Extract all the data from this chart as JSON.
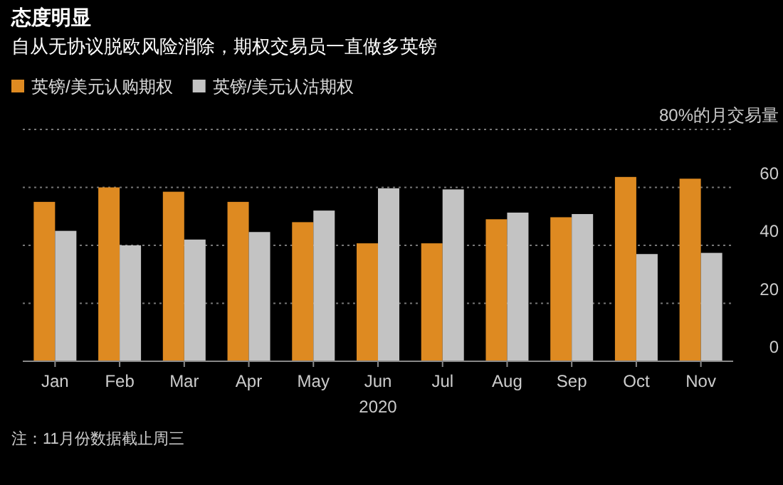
{
  "chart_data": {
    "type": "bar",
    "title": "态度明显",
    "subtitle": "自从无协议脱欧风险消除，期权交易员一直做多英镑",
    "xlabel": "2020",
    "categories": [
      "Jan",
      "Feb",
      "Mar",
      "Apr",
      "May",
      "Jun",
      "Jul",
      "Aug",
      "Sep",
      "Oct",
      "Nov"
    ],
    "series": [
      {
        "name": "英镑/美元认购期权",
        "color": "#de8a21",
        "values": [
          55,
          60,
          58.5,
          55,
          48,
          40.7,
          40.7,
          49,
          49.7,
          63.6,
          63
        ]
      },
      {
        "name": "英镑/美元认沽期权",
        "color": "#c3c3c3",
        "values": [
          45,
          40,
          42,
          44.6,
          52,
          59.7,
          59.3,
          51.3,
          50.8,
          37,
          37.4
        ]
      }
    ],
    "ylim": [
      0,
      80
    ],
    "yticks": [
      0,
      20,
      40,
      60,
      {
        "value": 80,
        "label": "80%的月交易量"
      }
    ],
    "grid": "y",
    "legend": "top left",
    "annotations": [
      "注：11月份数据截止周三"
    ]
  }
}
